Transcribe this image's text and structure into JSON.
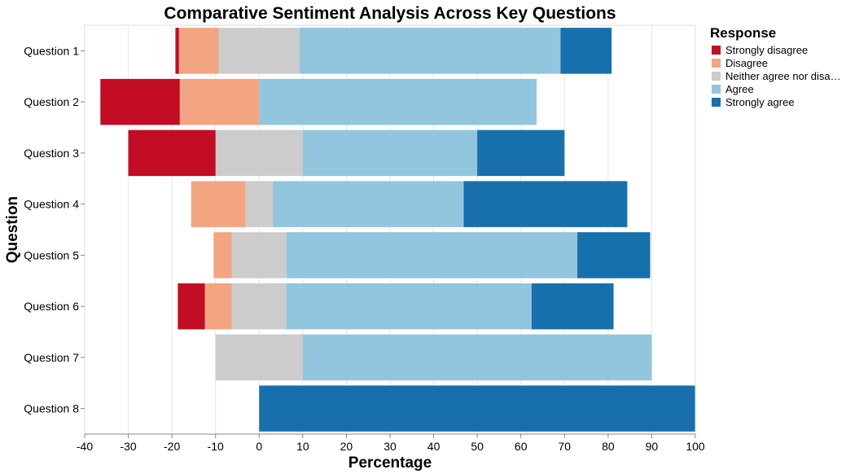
{
  "chart_data": {
    "type": "bar",
    "orientation": "horizontal-diverging-stacked",
    "title": "Comparative Sentiment Analysis Across Key Questions",
    "xlabel": "Percentage",
    "ylabel": "Question",
    "xlim": [
      -40,
      100
    ],
    "xticks": [
      -40,
      -30,
      -20,
      -10,
      0,
      10,
      20,
      30,
      40,
      50,
      60,
      70,
      80,
      90,
      100
    ],
    "grid": true,
    "legend": {
      "title": "Response",
      "placement": "right",
      "entries": [
        "Strongly disagree",
        "Disagree",
        "Neither agree nor disa…",
        "Agree",
        "Strongly agree"
      ]
    },
    "categories": [
      "Question 1",
      "Question 2",
      "Question 3",
      "Question 4",
      "Question 5",
      "Question 6",
      "Question 7",
      "Question 8"
    ],
    "series": [
      {
        "name": "Strongly disagree",
        "color": "#c30d24",
        "side": "negative",
        "values": [
          0.8,
          18.2,
          20.0,
          0,
          0,
          6.2,
          0,
          0
        ]
      },
      {
        "name": "Disagree",
        "color": "#f3a582",
        "side": "negative",
        "values": [
          9.1,
          18.2,
          0,
          12.5,
          4.2,
          6.2,
          0,
          0
        ]
      },
      {
        "name": "Neither agree nor disagree",
        "color": "#cccccc",
        "side": "split",
        "values": [
          18.6,
          0,
          20.0,
          6.2,
          12.5,
          12.5,
          20.0,
          0
        ]
      },
      {
        "name": "Agree",
        "color": "#92c5de",
        "side": "positive",
        "values": [
          59.8,
          63.6,
          40.0,
          43.8,
          66.7,
          56.2,
          80.0,
          0
        ]
      },
      {
        "name": "Strongly agree",
        "color": "#1770ab",
        "side": "positive",
        "values": [
          11.7,
          0,
          20.0,
          37.5,
          16.7,
          18.8,
          0,
          100.0
        ]
      }
    ]
  }
}
